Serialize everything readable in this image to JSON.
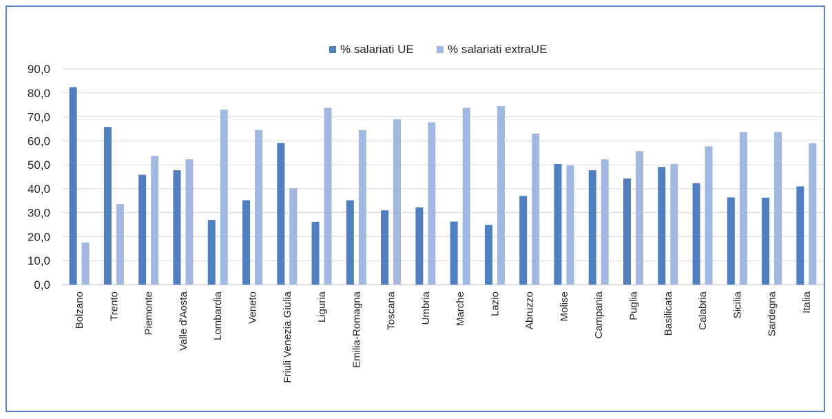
{
  "chart_data": {
    "type": "bar",
    "categories": [
      "Bolzano",
      "Trento",
      "Piemonte",
      "Valle d'Aosta",
      "Lombardia",
      "Veneto",
      "Friuli Venezia Giulia",
      "Liguria",
      "Emilia-Romagna",
      "Toscana",
      "Umbria",
      "Marche",
      "Lazio",
      "Abruzzo",
      "Molise",
      "Campania",
      "Puglia",
      "Basilicata",
      "Calabria",
      "Sicilia",
      "Sardegna",
      "Italia"
    ],
    "series": [
      {
        "name": "% salariati UE",
        "color": "#4f7fc0",
        "values": [
          82.4,
          65.8,
          45.8,
          47.7,
          27.0,
          35.2,
          59.1,
          26.2,
          35.2,
          31.0,
          32.2,
          26.3,
          24.9,
          37.0,
          50.3,
          47.7,
          44.3,
          49.1,
          42.3,
          36.4,
          36.3,
          41.0
        ]
      },
      {
        "name": "% salariati extraUE",
        "color": "#a2b8e0",
        "values": [
          17.6,
          33.6,
          53.7,
          52.3,
          73.0,
          64.5,
          40.2,
          73.8,
          64.4,
          69.0,
          67.7,
          73.8,
          74.5,
          63.0,
          49.7,
          52.3,
          55.7,
          50.4,
          57.7,
          63.6,
          63.7,
          59.0
        ]
      }
    ],
    "ylim": [
      0,
      90
    ],
    "yticks": [
      "0,0",
      "10,0",
      "20,0",
      "30,0",
      "40,0",
      "50,0",
      "60,0",
      "70,0",
      "80,0",
      "90,0"
    ],
    "grid": true,
    "legend_position": "top"
  }
}
